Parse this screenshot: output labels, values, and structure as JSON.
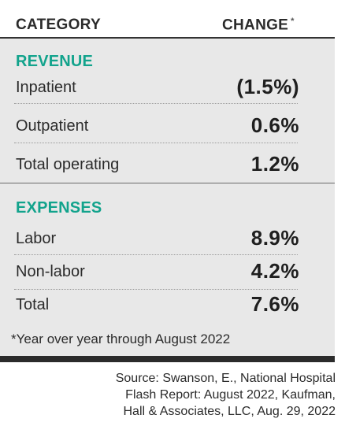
{
  "header": {
    "category": "CATEGORY",
    "change": "CHANGE",
    "asterisk": "*"
  },
  "sections": [
    {
      "title": "REVENUE",
      "rows": [
        {
          "label": "Inpatient",
          "value": "(1.5%)"
        },
        {
          "label": "Outpatient",
          "value": "0.6%"
        },
        {
          "label": "Total operating",
          "value": "1.2%"
        }
      ]
    },
    {
      "title": "EXPENSES",
      "rows": [
        {
          "label": "Labor",
          "value": "8.9%"
        },
        {
          "label": "Non-labor",
          "value": "4.2%"
        },
        {
          "label": "Total",
          "value": "7.6%"
        }
      ]
    }
  ],
  "footnote": "*Year over year through August 2022",
  "source_lines": [
    "Source: Swanson, E., National Hospital",
    "Flash Report: August 2022, Kaufman,",
    "Hall & Associates, LLC, Aug. 29, 2022"
  ],
  "colors": {
    "accent": "#12a38c",
    "panel": "#e8e8e8",
    "text": "#2b2b2b"
  },
  "chart_data": {
    "type": "table",
    "columns": [
      "CATEGORY",
      "CHANGE *"
    ],
    "groups": [
      {
        "name": "REVENUE",
        "rows": [
          [
            "Inpatient",
            "(1.5%)"
          ],
          [
            "Outpatient",
            "0.6%"
          ],
          [
            "Total operating",
            "1.2%"
          ]
        ]
      },
      {
        "name": "EXPENSES",
        "rows": [
          [
            "Labor",
            "8.9%"
          ],
          [
            "Non-labor",
            "4.2%"
          ],
          [
            "Total",
            "7.6%"
          ]
        ]
      }
    ]
  }
}
